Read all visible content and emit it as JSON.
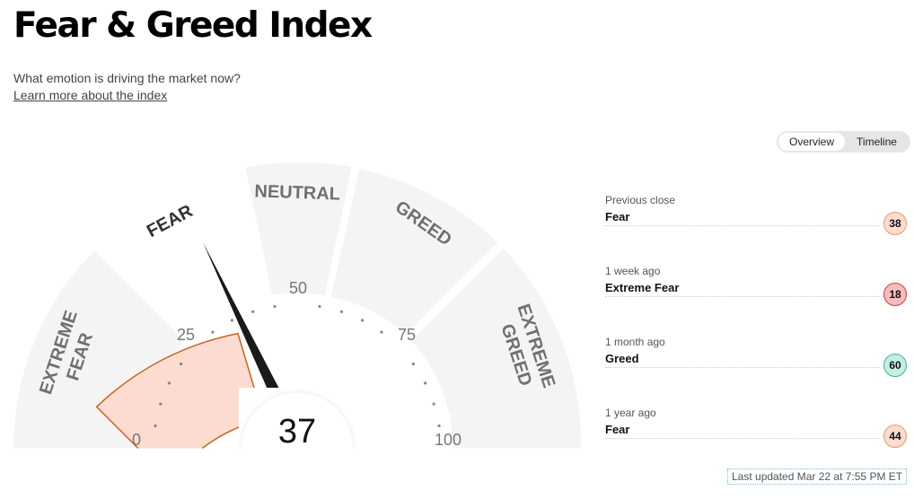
{
  "header": {
    "title": "Fear & Greed Index",
    "subtitle": "What emotion is driving the market now?",
    "learn_more": "Learn more about the index"
  },
  "view_toggle": {
    "overview": "Overview",
    "timeline": "Timeline",
    "selected": "Overview"
  },
  "gauge": {
    "value": "37",
    "segments": {
      "extreme_fear": [
        "EXTREME",
        "FEAR"
      ],
      "fear": "FEAR",
      "neutral": "NEUTRAL",
      "greed": "GREED",
      "extreme_greed": [
        "EXTREME",
        "GREED"
      ]
    },
    "ticks": {
      "t0": "0",
      "t25": "25",
      "t50": "50",
      "t75": "75",
      "t100": "100"
    },
    "active_segment": "fear",
    "colors": {
      "segment": "#f4f4f4",
      "active_fill": "#fcdcd0",
      "active_stroke": "#c8641f",
      "needle": "#1a1a1a",
      "label": "#707070"
    }
  },
  "history": [
    {
      "label": "Previous close",
      "value": "Fear",
      "score": "38",
      "bg": "#fcdcd0",
      "border": "#e89a6a"
    },
    {
      "label": "1 week ago",
      "value": "Extreme Fear",
      "score": "18",
      "bg": "#f6bcbc",
      "border": "#d23c3c"
    },
    {
      "label": "1 month ago",
      "value": "Greed",
      "score": "60",
      "bg": "#c2eee3",
      "border": "#3bb597"
    },
    {
      "label": "1 year ago",
      "value": "Fear",
      "score": "44",
      "bg": "#fcdcd0",
      "border": "#e89a6a"
    }
  ],
  "last_updated": "Last updated Mar 22 at 7:55 PM ET"
}
